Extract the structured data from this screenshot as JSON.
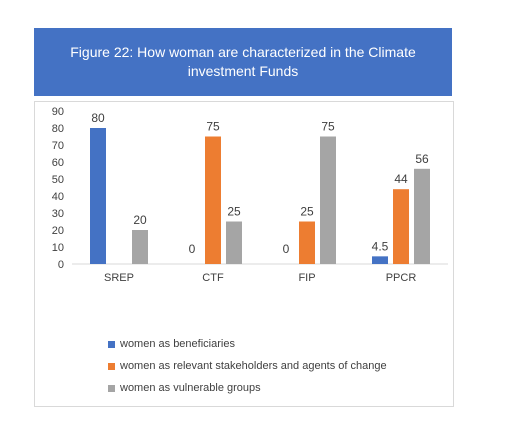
{
  "title": "Figure 22: How woman are characterized in the Climate investment Funds",
  "chart_data": {
    "type": "bar",
    "categories": [
      "SREP",
      "CTF",
      "FIP",
      "PPCR"
    ],
    "series": [
      {
        "name": "women as beneficiaries",
        "color": "#4472c4",
        "values": [
          80,
          0,
          0,
          4.5
        ],
        "labels": [
          "80",
          "0",
          "0",
          "4.5"
        ]
      },
      {
        "name": "women as relevant stakeholders and agents of change",
        "color": "#ed7d31",
        "values": [
          null,
          75,
          25,
          44
        ],
        "labels": [
          "",
          "75",
          "25",
          "44"
        ]
      },
      {
        "name": "women as vulnerable groups",
        "color": "#a5a5a5",
        "values": [
          20,
          25,
          75,
          56
        ],
        "labels": [
          "20",
          "25",
          "75",
          "56"
        ]
      }
    ],
    "ylim": [
      0,
      90
    ],
    "yticks": [
      0,
      10,
      20,
      30,
      40,
      50,
      60,
      70,
      80,
      90
    ],
    "legend": "bottom",
    "grid": false
  }
}
